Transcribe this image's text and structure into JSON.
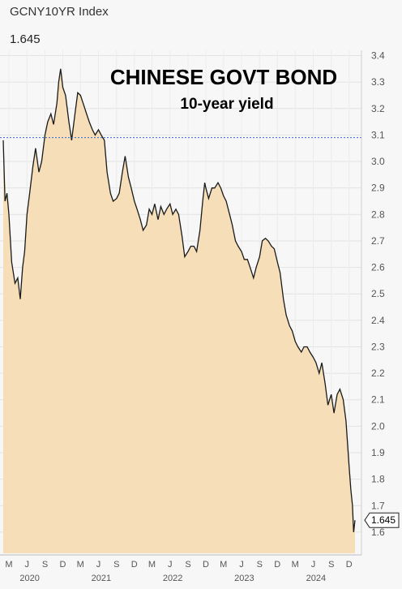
{
  "header": {
    "ticker": "GCNY10YR Index",
    "last_value": "1.645"
  },
  "chart_data": {
    "type": "area",
    "title": "CHINESE GOVT BOND",
    "subtitle": "10-year yield",
    "xlabel": "",
    "ylabel": "",
    "ylim": [
      1.52,
      3.42
    ],
    "xlim": [
      "2020-02-01",
      "2024-12-31"
    ],
    "y_ticks": [
      "1.6",
      "1.7",
      "1.8",
      "1.9",
      "2.0",
      "2.1",
      "2.2",
      "2.3",
      "2.4",
      "2.5",
      "2.6",
      "2.7",
      "2.8",
      "2.9",
      "3.0",
      "3.1",
      "3.2",
      "3.3",
      "3.4"
    ],
    "x_month_ticks": [
      {
        "label": "M",
        "date": "2020-03-01"
      },
      {
        "label": "J",
        "date": "2020-06-01"
      },
      {
        "label": "S",
        "date": "2020-09-01"
      },
      {
        "label": "D",
        "date": "2020-12-01"
      },
      {
        "label": "M",
        "date": "2021-03-01"
      },
      {
        "label": "J",
        "date": "2021-06-01"
      },
      {
        "label": "S",
        "date": "2021-09-01"
      },
      {
        "label": "D",
        "date": "2021-12-01"
      },
      {
        "label": "M",
        "date": "2022-03-01"
      },
      {
        "label": "J",
        "date": "2022-06-01"
      },
      {
        "label": "S",
        "date": "2022-09-01"
      },
      {
        "label": "D",
        "date": "2022-12-01"
      },
      {
        "label": "M",
        "date": "2023-03-01"
      },
      {
        "label": "J",
        "date": "2023-06-01"
      },
      {
        "label": "S",
        "date": "2023-09-01"
      },
      {
        "label": "D",
        "date": "2023-12-01"
      },
      {
        "label": "M",
        "date": "2024-03-01"
      },
      {
        "label": "J",
        "date": "2024-06-01"
      },
      {
        "label": "S",
        "date": "2024-09-01"
      },
      {
        "label": "D",
        "date": "2024-12-01"
      }
    ],
    "x_year_ticks": [
      {
        "label": "2020",
        "date": "2020-06-15"
      },
      {
        "label": "2021",
        "date": "2021-06-15"
      },
      {
        "label": "2022",
        "date": "2022-06-15"
      },
      {
        "label": "2023",
        "date": "2023-06-15"
      },
      {
        "label": "2024",
        "date": "2024-06-15"
      }
    ],
    "reference_line": {
      "y": 3.09,
      "style": "dotted",
      "color": "#3366cc"
    },
    "last_label": "1.645",
    "series": [
      {
        "color": "#1a1a1a",
        "fill": "#f5deb8",
        "points": [
          [
            "2020-02-01",
            3.08
          ],
          [
            "2020-02-10",
            2.85
          ],
          [
            "2020-02-20",
            2.88
          ],
          [
            "2020-03-01",
            2.8
          ],
          [
            "2020-03-15",
            2.62
          ],
          [
            "2020-04-01",
            2.54
          ],
          [
            "2020-04-15",
            2.56
          ],
          [
            "2020-04-28",
            2.48
          ],
          [
            "2020-05-10",
            2.6
          ],
          [
            "2020-05-20",
            2.66
          ],
          [
            "2020-06-01",
            2.8
          ],
          [
            "2020-06-15",
            2.88
          ],
          [
            "2020-07-01",
            2.98
          ],
          [
            "2020-07-15",
            3.05
          ],
          [
            "2020-08-01",
            2.96
          ],
          [
            "2020-08-15",
            3.0
          ],
          [
            "2020-09-01",
            3.1
          ],
          [
            "2020-09-15",
            3.15
          ],
          [
            "2020-10-01",
            3.18
          ],
          [
            "2020-10-15",
            3.14
          ],
          [
            "2020-11-01",
            3.22
          ],
          [
            "2020-11-10",
            3.3
          ],
          [
            "2020-11-20",
            3.35
          ],
          [
            "2020-12-01",
            3.28
          ],
          [
            "2020-12-15",
            3.25
          ],
          [
            "2021-01-01",
            3.15
          ],
          [
            "2021-01-15",
            3.08
          ],
          [
            "2021-02-01",
            3.18
          ],
          [
            "2021-02-15",
            3.26
          ],
          [
            "2021-03-01",
            3.25
          ],
          [
            "2021-03-15",
            3.22
          ],
          [
            "2021-04-01",
            3.18
          ],
          [
            "2021-04-15",
            3.15
          ],
          [
            "2021-05-01",
            3.12
          ],
          [
            "2021-05-15",
            3.1
          ],
          [
            "2021-06-01",
            3.12
          ],
          [
            "2021-06-15",
            3.1
          ],
          [
            "2021-07-01",
            3.08
          ],
          [
            "2021-07-15",
            2.96
          ],
          [
            "2021-08-01",
            2.88
          ],
          [
            "2021-08-15",
            2.85
          ],
          [
            "2021-09-01",
            2.86
          ],
          [
            "2021-09-15",
            2.88
          ],
          [
            "2021-10-01",
            2.96
          ],
          [
            "2021-10-15",
            3.02
          ],
          [
            "2021-11-01",
            2.94
          ],
          [
            "2021-11-15",
            2.9
          ],
          [
            "2021-12-01",
            2.85
          ],
          [
            "2021-12-15",
            2.82
          ],
          [
            "2022-01-01",
            2.78
          ],
          [
            "2022-01-15",
            2.74
          ],
          [
            "2022-02-01",
            2.76
          ],
          [
            "2022-02-15",
            2.82
          ],
          [
            "2022-03-01",
            2.8
          ],
          [
            "2022-03-15",
            2.84
          ],
          [
            "2022-04-01",
            2.78
          ],
          [
            "2022-04-15",
            2.83
          ],
          [
            "2022-05-01",
            2.8
          ],
          [
            "2022-05-15",
            2.82
          ],
          [
            "2022-06-01",
            2.84
          ],
          [
            "2022-06-15",
            2.8
          ],
          [
            "2022-07-01",
            2.82
          ],
          [
            "2022-07-15",
            2.8
          ],
          [
            "2022-08-01",
            2.72
          ],
          [
            "2022-08-15",
            2.64
          ],
          [
            "2022-09-01",
            2.66
          ],
          [
            "2022-09-15",
            2.68
          ],
          [
            "2022-10-01",
            2.68
          ],
          [
            "2022-10-15",
            2.66
          ],
          [
            "2022-11-01",
            2.74
          ],
          [
            "2022-11-15",
            2.85
          ],
          [
            "2022-11-25",
            2.92
          ],
          [
            "2022-12-01",
            2.9
          ],
          [
            "2022-12-15",
            2.86
          ],
          [
            "2023-01-01",
            2.9
          ],
          [
            "2023-01-15",
            2.9
          ],
          [
            "2023-02-01",
            2.92
          ],
          [
            "2023-02-15",
            2.9
          ],
          [
            "2023-03-01",
            2.87
          ],
          [
            "2023-03-15",
            2.85
          ],
          [
            "2023-04-01",
            2.8
          ],
          [
            "2023-04-15",
            2.76
          ],
          [
            "2023-05-01",
            2.7
          ],
          [
            "2023-05-15",
            2.68
          ],
          [
            "2023-06-01",
            2.66
          ],
          [
            "2023-06-15",
            2.63
          ],
          [
            "2023-07-01",
            2.63
          ],
          [
            "2023-07-15",
            2.6
          ],
          [
            "2023-08-01",
            2.56
          ],
          [
            "2023-08-15",
            2.6
          ],
          [
            "2023-09-01",
            2.64
          ],
          [
            "2023-09-15",
            2.7
          ],
          [
            "2023-10-01",
            2.71
          ],
          [
            "2023-10-15",
            2.7
          ],
          [
            "2023-11-01",
            2.68
          ],
          [
            "2023-11-15",
            2.67
          ],
          [
            "2023-12-01",
            2.62
          ],
          [
            "2023-12-15",
            2.58
          ],
          [
            "2024-01-01",
            2.48
          ],
          [
            "2024-01-15",
            2.42
          ],
          [
            "2024-02-01",
            2.38
          ],
          [
            "2024-02-15",
            2.36
          ],
          [
            "2024-03-01",
            2.32
          ],
          [
            "2024-03-15",
            2.3
          ],
          [
            "2024-04-01",
            2.28
          ],
          [
            "2024-04-15",
            2.3
          ],
          [
            "2024-05-01",
            2.3
          ],
          [
            "2024-05-15",
            2.28
          ],
          [
            "2024-06-01",
            2.26
          ],
          [
            "2024-06-15",
            2.24
          ],
          [
            "2024-07-01",
            2.2
          ],
          [
            "2024-07-15",
            2.24
          ],
          [
            "2024-08-01",
            2.16
          ],
          [
            "2024-08-15",
            2.08
          ],
          [
            "2024-09-01",
            2.12
          ],
          [
            "2024-09-15",
            2.05
          ],
          [
            "2024-10-01",
            2.12
          ],
          [
            "2024-10-15",
            2.14
          ],
          [
            "2024-11-01",
            2.1
          ],
          [
            "2024-11-15",
            2.02
          ],
          [
            "2024-12-01",
            1.85
          ],
          [
            "2024-12-10",
            1.76
          ],
          [
            "2024-12-18",
            1.7
          ],
          [
            "2024-12-24",
            1.6
          ],
          [
            "2024-12-31",
            1.645
          ]
        ]
      }
    ]
  }
}
